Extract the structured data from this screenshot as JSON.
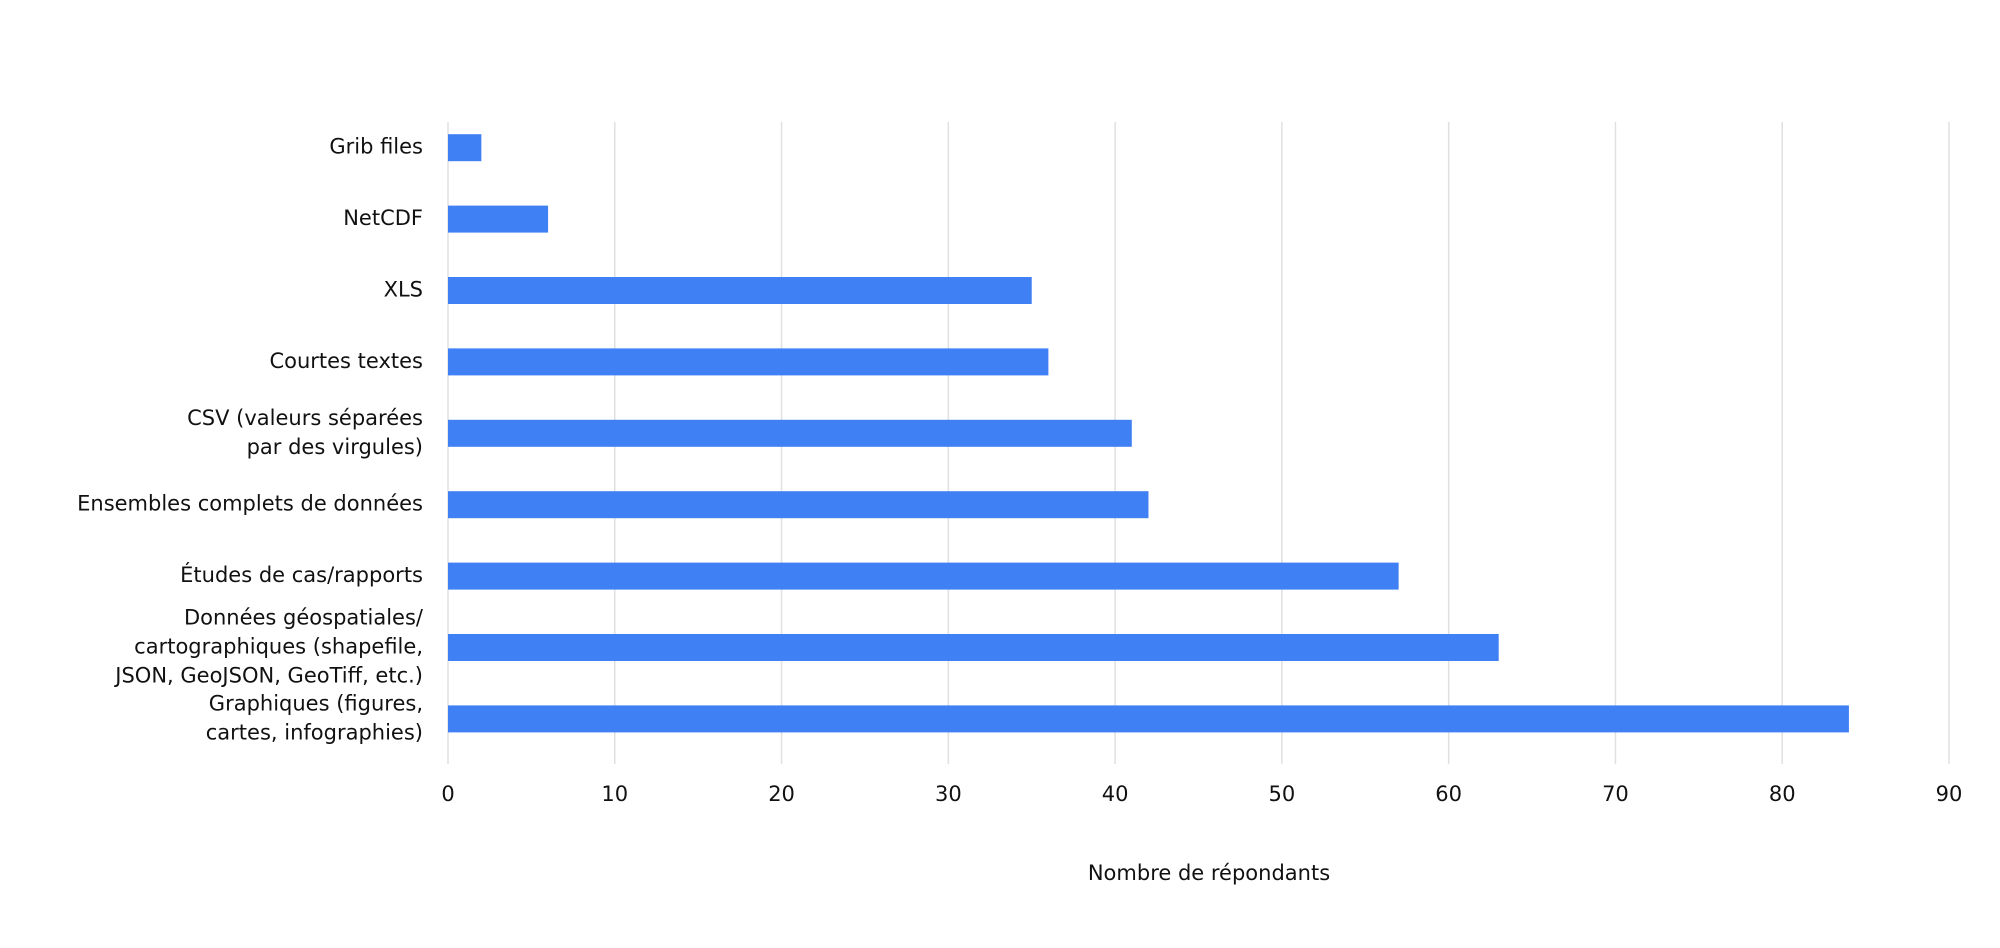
{
  "chart_data": {
    "type": "bar",
    "orientation": "horizontal",
    "x_label": "Nombre de répondants",
    "categories": [
      [
        "Grib files"
      ],
      [
        "NetCDF"
      ],
      [
        "XLS"
      ],
      [
        "Courtes textes"
      ],
      [
        "CSV (valeurs séparées",
        "par des virgules)"
      ],
      [
        "Ensembles complets de données"
      ],
      [
        "Études de cas/rapports"
      ],
      [
        "Données géospatiales/",
        "cartographiques (shapefile,",
        "JSON, GeoJSON, GeoTiff, etc.)"
      ],
      [
        "Graphiques (figures,",
        "cartes, infographies)"
      ]
    ],
    "values": [
      2,
      6,
      35,
      36,
      41,
      42,
      57,
      63,
      84
    ],
    "color": "#4080f5",
    "xlim": [
      0,
      90
    ],
    "xticks": [
      0,
      10,
      20,
      30,
      40,
      50,
      60,
      70,
      80,
      90
    ],
    "grid": true
  }
}
